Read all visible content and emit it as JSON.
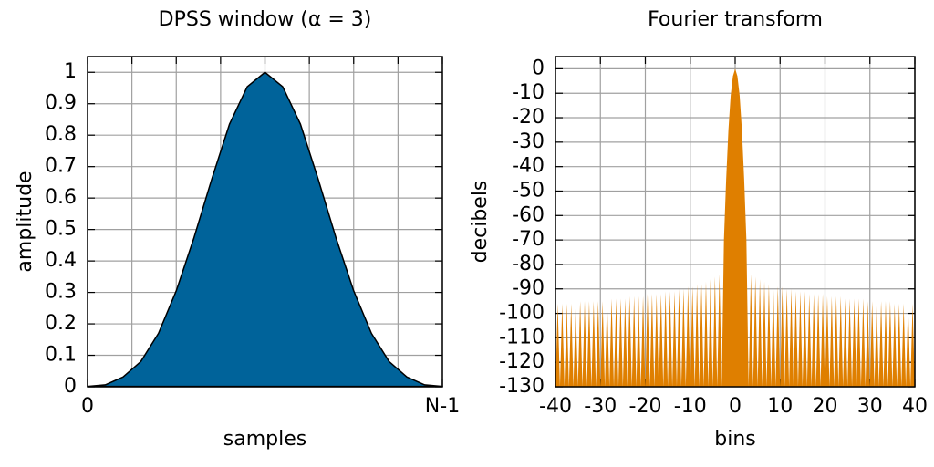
{
  "chart_data": [
    {
      "type": "area",
      "title": "DPSS window (α = 3)",
      "xlabel": "samples",
      "ylabel": "amplitude",
      "x": [
        0,
        0.05,
        0.1,
        0.15,
        0.2,
        0.25,
        0.3,
        0.35,
        0.4,
        0.45,
        0.5,
        0.55,
        0.6,
        0.65,
        0.7,
        0.75,
        0.8,
        0.85,
        0.9,
        0.95,
        1
      ],
      "series": [
        {
          "color": "#00639a",
          "line_color": "#000000",
          "values": [
            0.001,
            0.006,
            0.031,
            0.08,
            0.17,
            0.305,
            0.474,
            0.66,
            0.835,
            0.954,
            1,
            0.954,
            0.835,
            0.66,
            0.474,
            0.305,
            0.17,
            0.08,
            0.031,
            0.006,
            0.001
          ]
        }
      ],
      "xlim": [
        0,
        1
      ],
      "xticks": [
        0,
        {
          "value": 1,
          "label": "N-1"
        }
      ],
      "xminorticks": [
        0.125,
        0.25,
        0.375,
        0.5,
        0.625,
        0.75,
        0.875
      ],
      "ylim": [
        0,
        1.05
      ],
      "yticks": [
        0,
        0.1,
        0.2,
        0.3,
        0.4,
        0.5,
        0.6,
        0.7,
        0.8,
        0.9,
        1
      ],
      "grid": true
    },
    {
      "type": "area",
      "title": "Fourier transform",
      "xlabel": "bins",
      "ylabel": "decibels",
      "x": [
        -40,
        -39.5,
        -39,
        -38.5,
        -38,
        -37.5,
        -37,
        -36.5,
        -36,
        -35.5,
        -35,
        -34.5,
        -34,
        -33.5,
        -33,
        -32.5,
        -32,
        -31.5,
        -31,
        -30.5,
        -30,
        -29.5,
        -29,
        -28.5,
        -28,
        -27.5,
        -27,
        -26.5,
        -26,
        -25.5,
        -25,
        -24.5,
        -24,
        -23.5,
        -23,
        -22.5,
        -22,
        -21.5,
        -21,
        -20.5,
        -20,
        -19.5,
        -19,
        -18.5,
        -18,
        -17.5,
        -17,
        -16.5,
        -16,
        -15.5,
        -15,
        -14.5,
        -14,
        -13.5,
        -13,
        -12.5,
        -12,
        -11.5,
        -11,
        -10.5,
        -10,
        -9.5,
        -9,
        -8.5,
        -8,
        -7.5,
        -7,
        -6.5,
        -6,
        -5.5,
        -5,
        -4.5,
        -4,
        -3.5,
        -3,
        -2.5,
        -2,
        -1.5,
        -1,
        -0.5,
        0,
        0.5,
        1,
        1.5,
        2,
        2.5,
        3,
        3.5,
        4,
        4.5,
        5,
        5.5,
        6,
        6.5,
        7,
        7.5,
        8,
        8.5,
        9,
        9.5,
        10,
        10.5,
        11,
        11.5,
        12,
        12.5,
        13,
        13.5,
        14,
        14.5,
        15,
        15.5,
        16,
        16.5,
        17,
        17.5,
        18,
        18.5,
        19,
        19.5,
        20,
        20.5,
        21,
        21.5,
        22,
        22.5,
        23,
        23.5,
        24,
        24.5,
        25,
        25.5,
        26,
        26.5,
        27,
        27.5,
        28,
        28.5,
        29,
        29.5,
        30,
        30.5,
        31,
        31.5,
        32,
        32.5,
        33,
        33.5,
        34,
        34.5,
        35,
        35.5,
        36,
        36.5,
        37,
        37.5,
        38,
        38.5,
        39,
        39.5,
        40
      ],
      "series": [
        {
          "color": "#df7f00",
          "values": [
            -130,
            -96,
            -130,
            -96,
            -130,
            -96,
            -130,
            -96,
            -130,
            -96,
            -130,
            -95,
            -130,
            -95,
            -130,
            -95,
            -130,
            -95,
            -130,
            -95,
            -130,
            -95,
            -130,
            -94,
            -130,
            -94,
            -130,
            -94,
            -130,
            -94,
            -130,
            -94,
            -130,
            -93,
            -130,
            -93,
            -130,
            -93,
            -130,
            -93,
            -130,
            -92,
            -130,
            -92,
            -130,
            -92,
            -130,
            -92,
            -130,
            -91,
            -130,
            -91,
            -130,
            -91,
            -130,
            -90,
            -130,
            -90,
            -130,
            -89,
            -130,
            -89,
            -130,
            -88,
            -130,
            -88,
            -130,
            -87,
            -130,
            -86,
            -130,
            -85,
            -130,
            -84,
            -130,
            -70,
            -45,
            -25,
            -11,
            -3,
            0,
            -3,
            -11,
            -25,
            -45,
            -70,
            -130,
            -84,
            -130,
            -85,
            -130,
            -86,
            -130,
            -87,
            -130,
            -88,
            -130,
            -88,
            -130,
            -89,
            -130,
            -89,
            -130,
            -90,
            -130,
            -90,
            -130,
            -91,
            -130,
            -91,
            -130,
            -91,
            -130,
            -92,
            -130,
            -92,
            -130,
            -92,
            -130,
            -92,
            -130,
            -93,
            -130,
            -93,
            -130,
            -93,
            -130,
            -93,
            -130,
            -94,
            -130,
            -94,
            -130,
            -94,
            -130,
            -94,
            -130,
            -94,
            -130,
            -95,
            -130,
            -95,
            -130,
            -95,
            -130,
            -95,
            -130,
            -95,
            -130,
            -95,
            -130,
            -96,
            -130,
            -96,
            -130,
            -96,
            -130,
            -96,
            -130,
            -96,
            -130
          ]
        }
      ],
      "xlim": [
        -40,
        40
      ],
      "xticks": [
        -40,
        -30,
        -20,
        -10,
        0,
        10,
        20,
        30,
        40
      ],
      "ylim": [
        -130,
        5
      ],
      "yticks": [
        0,
        -10,
        -20,
        -30,
        -40,
        -50,
        -60,
        -70,
        -80,
        -90,
        -100,
        -110,
        -120,
        -130
      ],
      "grid": true
    }
  ]
}
